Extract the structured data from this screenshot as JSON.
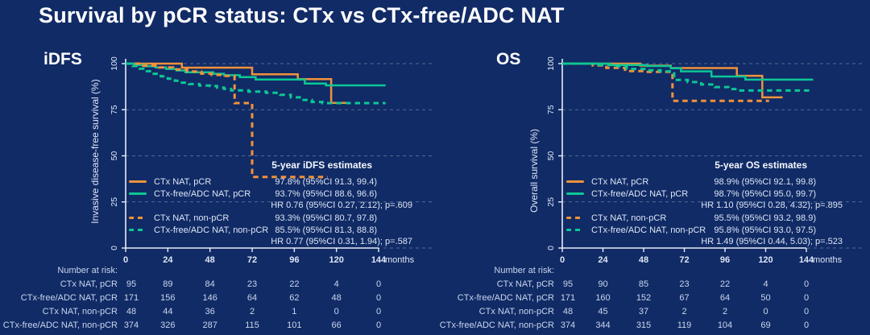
{
  "slide_title": "Survival by pCR status: CTx vs CTx-free/ADC NAT",
  "colors": {
    "background": "#112B66",
    "orange": "#F0923B",
    "teal": "#0CC795",
    "axis_text": "#DDE7F5",
    "table_text": "#C9D6EE",
    "grid": "#C9D4E8"
  },
  "x_axis": {
    "tick_labels": [
      "0",
      "24",
      "48",
      "72",
      "96",
      "120",
      "144"
    ],
    "unit": "months"
  },
  "y_axis": {
    "tick_labels": [
      "100",
      "75",
      "50",
      "25",
      "0"
    ]
  },
  "chart_data": [
    {
      "type": "line",
      "subtype": "kaplan-meier-step",
      "panel_title": "iDFS",
      "ylabel": "Invasive disease-free survival (%)",
      "xlabel": "months",
      "xlim": [
        0,
        150
      ],
      "ylim": [
        0,
        100
      ],
      "x_ticks": [
        0,
        24,
        48,
        72,
        96,
        120,
        144
      ],
      "y_ticks": [
        100,
        75,
        50,
        25,
        0
      ],
      "grid": "dashed horizontal gridlines at each y tick",
      "legend_position": "lower right inside plot",
      "legend_header": "5-year iDFS estimates",
      "series": [
        {
          "name": "CTx NAT, pCR",
          "color": "orange",
          "line": "solid",
          "estimate": "97.8% (95%CI 91.3, 99.4)",
          "points": [
            [
              0,
              100
            ],
            [
              32,
              97.8
            ],
            [
              72,
              94.2
            ],
            [
              98,
              91.6
            ],
            [
              117,
              78.7
            ],
            [
              126,
              78.7
            ]
          ]
        },
        {
          "name": "CTx-free/ADC NAT, pCR",
          "color": "teal",
          "line": "solid",
          "estimate": "93.7% (95%CI 88.6, 96.6)",
          "points": [
            [
              0,
              100
            ],
            [
              5,
              99.3
            ],
            [
              11,
              98.6
            ],
            [
              17,
              97.9
            ],
            [
              23,
              97.1
            ],
            [
              29,
              96.3
            ],
            [
              34,
              95.3
            ],
            [
              50,
              94.5
            ],
            [
              56,
              93.7
            ],
            [
              65,
              92.7
            ],
            [
              74,
              91.4
            ],
            [
              102,
              89.2
            ],
            [
              114,
              88.2
            ],
            [
              148,
              88.2
            ]
          ]
        },
        {
          "name": "CTx NAT, non-pCR",
          "color": "orange",
          "line": "dashed",
          "estimate": "93.3% (95%CI 80.7, 97.8)",
          "points": [
            [
              0,
              100
            ],
            [
              10,
              98.9
            ],
            [
              19,
              97.9
            ],
            [
              27,
              96.8
            ],
            [
              35,
              95.7
            ],
            [
              43,
              94.6
            ],
            [
              49,
              93.9
            ],
            [
              55,
              93.3
            ],
            [
              62,
              78.6
            ],
            [
              72,
              38.5
            ],
            [
              115,
              38.5
            ]
          ]
        },
        {
          "name": "CTx-free/ADC NAT, non-pCR",
          "color": "teal",
          "line": "dashed",
          "estimate": "85.5% (95%CI 81.3, 88.8)",
          "points": [
            [
              0,
              100
            ],
            [
              4,
              98.7
            ],
            [
              8,
              97.3
            ],
            [
              12,
              95.9
            ],
            [
              16,
              94.5
            ],
            [
              20,
              93.1
            ],
            [
              24,
              91.8
            ],
            [
              28,
              90.7
            ],
            [
              32,
              89.7
            ],
            [
              36,
              88.9
            ],
            [
              42,
              88.1
            ],
            [
              48,
              87.8
            ],
            [
              52,
              87.0
            ],
            [
              56,
              86.3
            ],
            [
              60,
              85.5
            ],
            [
              70,
              84.8
            ],
            [
              80,
              84.2
            ],
            [
              88,
              83.1
            ],
            [
              94,
              81.7
            ],
            [
              100,
              80.3
            ],
            [
              106,
              79.2
            ],
            [
              112,
              78.6
            ],
            [
              148,
              78.6
            ]
          ]
        }
      ],
      "hr_annotations": [
        "HR 0.76 (95%CI 0.27, 2.12); p=.609",
        "HR 0.77 (95%CI 0.31, 1.94); p=.587"
      ],
      "at_risk": {
        "header": "Number at risk:",
        "time_points": [
          0,
          24,
          48,
          72,
          96,
          120,
          144
        ],
        "rows": [
          {
            "label": "CTx NAT, pCR",
            "values": [
              "95",
              "89",
              "84",
              "23",
              "22",
              "4",
              "0"
            ]
          },
          {
            "label": "CTx-free/ADC NAT, pCR",
            "values": [
              "171",
              "156",
              "146",
              "64",
              "62",
              "48",
              "0"
            ]
          },
          {
            "label": "CTx NAT, non-pCR",
            "values": [
              "48",
              "44",
              "36",
              "2",
              "1",
              "0",
              "0"
            ]
          },
          {
            "label": "CTx-free/ADC NAT, non-pCR",
            "values": [
              "374",
              "326",
              "287",
              "115",
              "101",
              "66",
              "0"
            ]
          }
        ]
      }
    },
    {
      "type": "line",
      "subtype": "kaplan-meier-step",
      "panel_title": "OS",
      "ylabel": "Overall survival (%)",
      "xlabel": "months",
      "xlim": [
        0,
        150
      ],
      "ylim": [
        0,
        100
      ],
      "x_ticks": [
        0,
        24,
        48,
        72,
        96,
        120,
        144
      ],
      "y_ticks": [
        100,
        75,
        50,
        25,
        0
      ],
      "grid": "dashed horizontal gridlines at each y tick",
      "legend_position": "lower right inside plot",
      "legend_header": "5-year OS estimates",
      "series": [
        {
          "name": "CTx NAT, pCR",
          "color": "orange",
          "line": "solid",
          "estimate": "98.9% (95%CI 92.1, 99.8)",
          "points": [
            [
              0,
              100
            ],
            [
              46,
              98.9
            ],
            [
              64,
              97.6
            ],
            [
              103,
              93.4
            ],
            [
              118,
              81.7
            ],
            [
              130,
              81.7
            ]
          ]
        },
        {
          "name": "CTx-free/ADC NAT, pCR",
          "color": "teal",
          "line": "solid",
          "estimate": "98.7% (95%CI 95.0, 99.7)",
          "points": [
            [
              0,
              100
            ],
            [
              28,
              99.2
            ],
            [
              50,
              98.7
            ],
            [
              64,
              97.5
            ],
            [
              70,
              95.8
            ],
            [
              88,
              93.0
            ],
            [
              108,
              91.3
            ],
            [
              148,
              91.3
            ]
          ]
        },
        {
          "name": "CTx NAT, non-pCR",
          "color": "orange",
          "line": "dashed",
          "estimate": "95.5% (95%CI 93.2, 98.9)",
          "points": [
            [
              0,
              100
            ],
            [
              18,
              99.0
            ],
            [
              26,
              97.7
            ],
            [
              37,
              96.0
            ],
            [
              48,
              95.5
            ],
            [
              65,
              79.8
            ],
            [
              122,
              79.8
            ]
          ]
        },
        {
          "name": "CTx-free/ADC NAT, non-pCR",
          "color": "teal",
          "line": "dashed",
          "estimate": "95.8% (95%CI 93.0, 97.5)",
          "points": [
            [
              0,
              100
            ],
            [
              20,
              99.3
            ],
            [
              30,
              98.6
            ],
            [
              38,
              97.1
            ],
            [
              50,
              96.4
            ],
            [
              58,
              95.8
            ],
            [
              66,
              91.2
            ],
            [
              74,
              90.0
            ],
            [
              82,
              88.7
            ],
            [
              90,
              87.3
            ],
            [
              98,
              86.2
            ],
            [
              104,
              85.4
            ],
            [
              147,
              85.4
            ]
          ]
        }
      ],
      "hr_annotations": [
        "HR 1.10 (95%CI 0.28, 4.32); p=.895",
        "HR 1.49 (95%CI 0.44, 5.03); p=.523"
      ],
      "at_risk": {
        "header": "Number at risk:",
        "time_points": [
          0,
          24,
          48,
          72,
          96,
          120,
          144
        ],
        "rows": [
          {
            "label": "CTx NAT, pCR",
            "values": [
              "95",
              "90",
              "85",
              "23",
              "22",
              "4",
              "0"
            ]
          },
          {
            "label": "CTx-free/ADC NAT, pCR",
            "values": [
              "171",
              "160",
              "152",
              "67",
              "64",
              "50",
              "0"
            ]
          },
          {
            "label": "CTx NAT, non-pCR",
            "values": [
              "48",
              "45",
              "37",
              "2",
              "2",
              "0",
              "0"
            ]
          },
          {
            "label": "CTx-free/ADC NAT, non-pCR",
            "values": [
              "374",
              "344",
              "315",
              "119",
              "104",
              "69",
              "0"
            ]
          }
        ]
      }
    }
  ]
}
